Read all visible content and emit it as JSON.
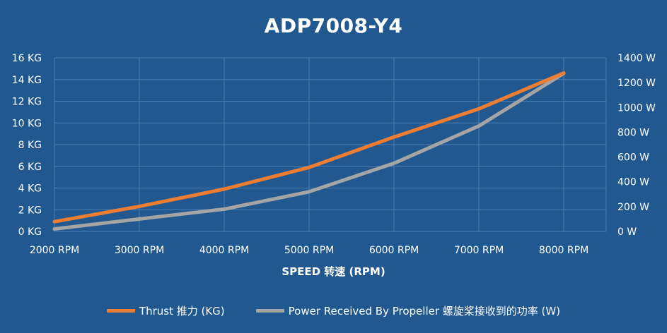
{
  "chart_data": {
    "type": "line",
    "title": "ADP7008-Y4",
    "xlabel": "SPEED 转速 (RPM)",
    "categories": [
      "2000 RPM",
      "3000 RPM",
      "4000 RPM",
      "5000 RPM",
      "6000 RPM",
      "7000 RPM",
      "8000 RPM"
    ],
    "y_left": {
      "ylim": [
        0,
        16
      ],
      "ticks": [
        "0 KG",
        "2 KG",
        "4 KG",
        "6 KG",
        "8 KG",
        "10 KG",
        "12 KG",
        "14 KG",
        "16 KG"
      ]
    },
    "y_right": {
      "ylim": [
        0,
        1400
      ],
      "ticks": [
        "0 W",
        "200 W",
        "400 W",
        "600 W",
        "800 W",
        "1000 W",
        "1200 W",
        "1400 W"
      ]
    },
    "grid": true,
    "legend_position": "bottom",
    "series": [
      {
        "name": "Thrust 推力 (KG)",
        "axis": "left",
        "color": "#ed7d31",
        "values": [
          0.9,
          2.3,
          3.9,
          5.9,
          8.7,
          11.3,
          14.6
        ]
      },
      {
        "name": "Power Received By Propeller 螺旋桨接收到的功率 (W)",
        "axis": "right",
        "color": "#a5a5a5",
        "values": [
          20,
          100,
          180,
          320,
          550,
          850,
          1275
        ]
      }
    ]
  }
}
